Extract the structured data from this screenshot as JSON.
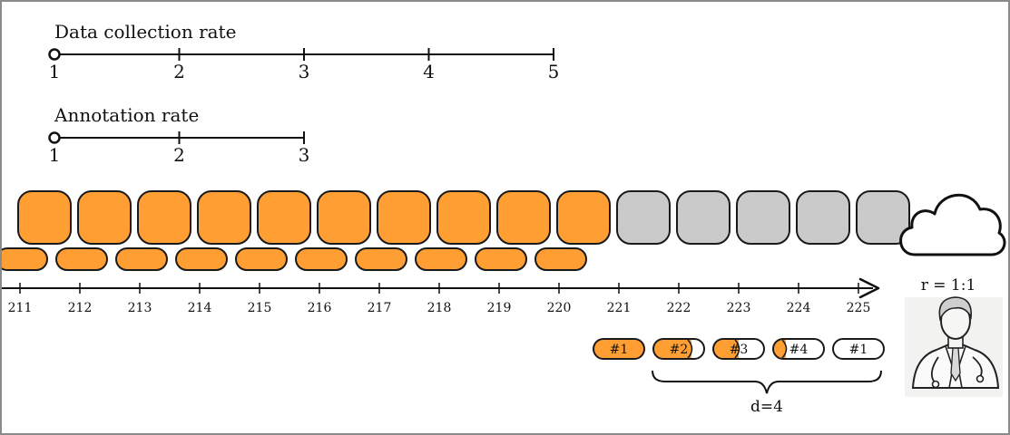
{
  "scales": {
    "collection": {
      "title": "Data collection rate",
      "ticks": [
        "1",
        "2",
        "3",
        "4",
        "5"
      ]
    },
    "annotation": {
      "title": "Annotation rate",
      "ticks": [
        "1",
        "2",
        "3"
      ]
    }
  },
  "timeline": {
    "labels": [
      "211",
      "212",
      "213",
      "214",
      "215",
      "216",
      "217",
      "218",
      "219",
      "220",
      "221",
      "222",
      "223",
      "224",
      "225"
    ],
    "collected_count": 10
  },
  "annotation_pills": [
    {
      "label": "#1",
      "fill": 1.0
    },
    {
      "label": "#2",
      "fill": 0.75
    },
    {
      "label": "#3",
      "fill": 0.5
    },
    {
      "label": "#4",
      "fill": 0.25
    },
    {
      "label": "#1",
      "fill": 0.0
    }
  ],
  "ratio_label": "r = 1:1",
  "delay_label": "d=4",
  "colors": {
    "collected": "#FF9F33",
    "pending": "#CACACA",
    "stroke": "#1a1a1a",
    "frame": "#8a8a8a"
  },
  "icons": [
    "cloud-icon",
    "doctor-icon"
  ]
}
